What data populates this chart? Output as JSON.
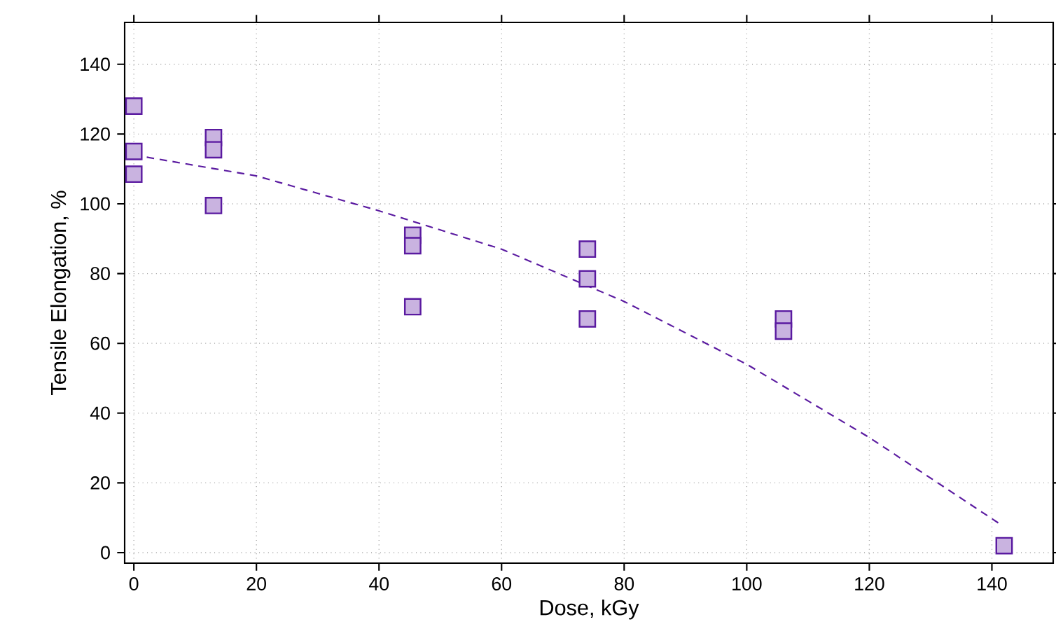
{
  "chart_data": {
    "type": "scatter",
    "xlabel": "Dose, kGy",
    "ylabel": "Tensile Elongation, %",
    "xlim": [
      -1.5,
      150
    ],
    "ylim": [
      -3,
      152
    ],
    "xticks": [
      0,
      20,
      40,
      60,
      80,
      100,
      120,
      140
    ],
    "yticks": [
      0,
      20,
      40,
      60,
      80,
      100,
      120,
      140
    ],
    "grid": true,
    "marker": "square",
    "series": [
      {
        "color": "#5a1aa0",
        "x": [
          0,
          0,
          0,
          13,
          13,
          13,
          45.5,
          45.5,
          45.5,
          74,
          74,
          74,
          106,
          106,
          142
        ],
        "values": [
          128,
          115,
          108.5,
          119,
          115.5,
          99.5,
          91,
          88,
          70.5,
          87,
          78.5,
          67,
          67,
          63.5,
          2
        ]
      },
      {
        "type": "line",
        "color": "#5a1aa0",
        "marker": "none",
        "line_style": "dashed",
        "x": [
          0,
          20,
          40,
          60,
          80,
          100,
          120,
          141.5
        ],
        "values": [
          114,
          108,
          98,
          87,
          72,
          54,
          33,
          8
        ]
      }
    ]
  }
}
